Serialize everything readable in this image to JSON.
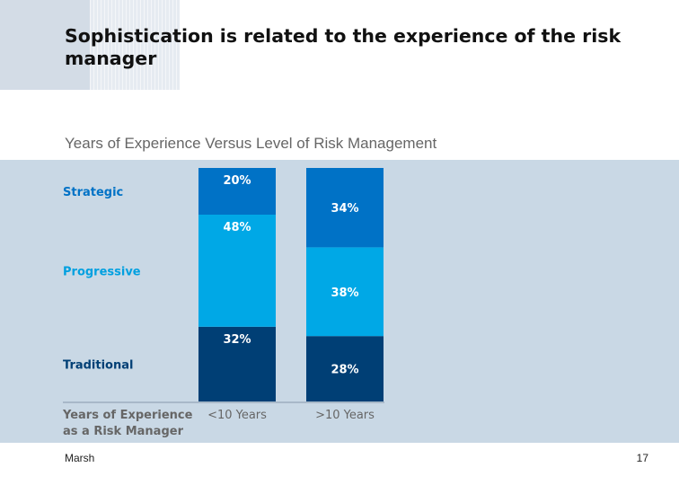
{
  "slide": {
    "title": "Sophistication is related to the experience of the risk manager",
    "footer_left": "Marsh",
    "page_number": "17"
  },
  "chart_data": {
    "type": "bar",
    "stacked": true,
    "title": "Years of Experience Versus Level of Risk Management",
    "xlabel": "Years of Experience as a Risk Manager",
    "categories": [
      "<10 Years",
      ">10 Years"
    ],
    "series": [
      {
        "name": "Traditional",
        "values": [
          32,
          28
        ],
        "color": "#003f75",
        "label_color": "#003f75"
      },
      {
        "name": "Progressive",
        "values": [
          48,
          38
        ],
        "color": "#00a8e6",
        "label_color": "#00a0e0"
      },
      {
        "name": "Strategic",
        "values": [
          20,
          34
        ],
        "color": "#0072c6",
        "label_color": "#0072c6"
      }
    ],
    "unit": "%",
    "ylim": [
      0,
      100
    ],
    "legend": "left",
    "colors": {
      "panel": "#c9d8e5",
      "axis_text": "#666666",
      "data_label": "#ffffff"
    }
  }
}
